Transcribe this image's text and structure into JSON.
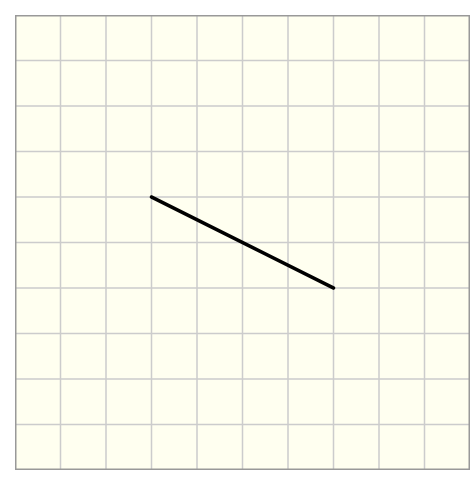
{
  "grid": {
    "columns": 10,
    "rows": 10,
    "background_color": "#fffff0",
    "line_color": "#cccccc",
    "border_color": "#999999"
  },
  "segment": {
    "start": {
      "col": 3,
      "row": 4
    },
    "end": {
      "col": 7,
      "row": 6
    },
    "color": "#000000"
  }
}
